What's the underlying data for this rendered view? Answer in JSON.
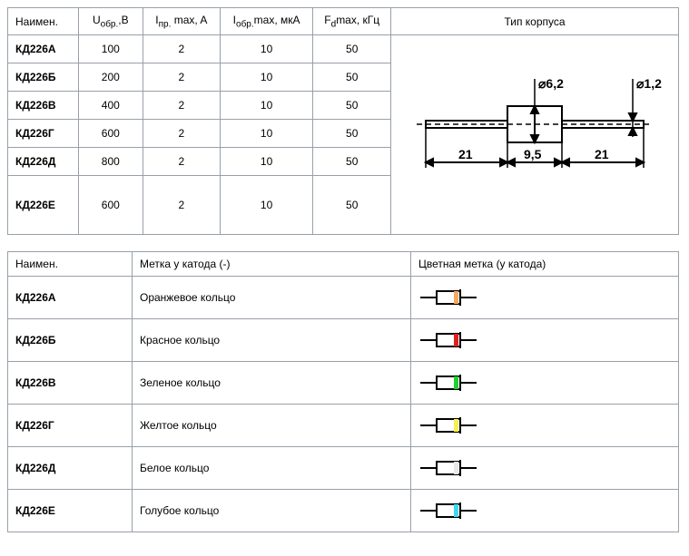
{
  "specs": {
    "headers": {
      "name": "Наимен.",
      "uobr": "Uобр.,В",
      "ipr": "Iпр. max, A",
      "iobr": "Iобр.max, мкА",
      "fd": "Fdmax, кГц",
      "case": "Тип корпуса"
    },
    "rows": [
      {
        "name": "КД226А",
        "u": "100",
        "ipr": "2",
        "iobr": "10",
        "fd": "50"
      },
      {
        "name": "КД226Б",
        "u": "200",
        "ipr": "2",
        "iobr": "10",
        "fd": "50"
      },
      {
        "name": "КД226В",
        "u": "400",
        "ipr": "2",
        "iobr": "10",
        "fd": "50"
      },
      {
        "name": "КД226Г",
        "u": "600",
        "ipr": "2",
        "iobr": "10",
        "fd": "50"
      },
      {
        "name": "КД226Д",
        "u": "800",
        "ipr": "2",
        "iobr": "10",
        "fd": "50"
      },
      {
        "name": "КД226Е",
        "u": "600",
        "ipr": "2",
        "iobr": "10",
        "fd": "50"
      }
    ],
    "package_diagram": {
      "body_diameter": "⌀6,2",
      "lead_diameter": "⌀1,2",
      "lead_length": "21",
      "body_length": "9,5",
      "stroke": "#000000",
      "stroke_width": 2,
      "font_family": "Arial",
      "font_size": 14,
      "font_weight": "bold"
    }
  },
  "colors": {
    "headers": {
      "name": "Наимен.",
      "mark": "Метка у катода (-)",
      "color": "Цветная метка (у катода)"
    },
    "rows": [
      {
        "name": "КД226А",
        "mark": "Оранжевое кольцо",
        "band": "#f5a860"
      },
      {
        "name": "КД226Б",
        "mark": "Красное кольцо",
        "band": "#e02020"
      },
      {
        "name": "КД226В",
        "mark": "Зеленое кольцо",
        "band": "#20d030"
      },
      {
        "name": "КД226Г",
        "mark": "Желтое кольцо",
        "band": "#f5f050"
      },
      {
        "name": "КД226Д",
        "mark": "Белое кольцо",
        "band": "#e8e8e8"
      },
      {
        "name": "КД226Е",
        "mark": "Голубое кольцо",
        "band": "#40d8f0"
      }
    ],
    "icon_style": {
      "lead_color": "#000000",
      "body_fill": "#ffffff",
      "body_stroke": "#000000",
      "width": 66,
      "height": 22
    }
  }
}
